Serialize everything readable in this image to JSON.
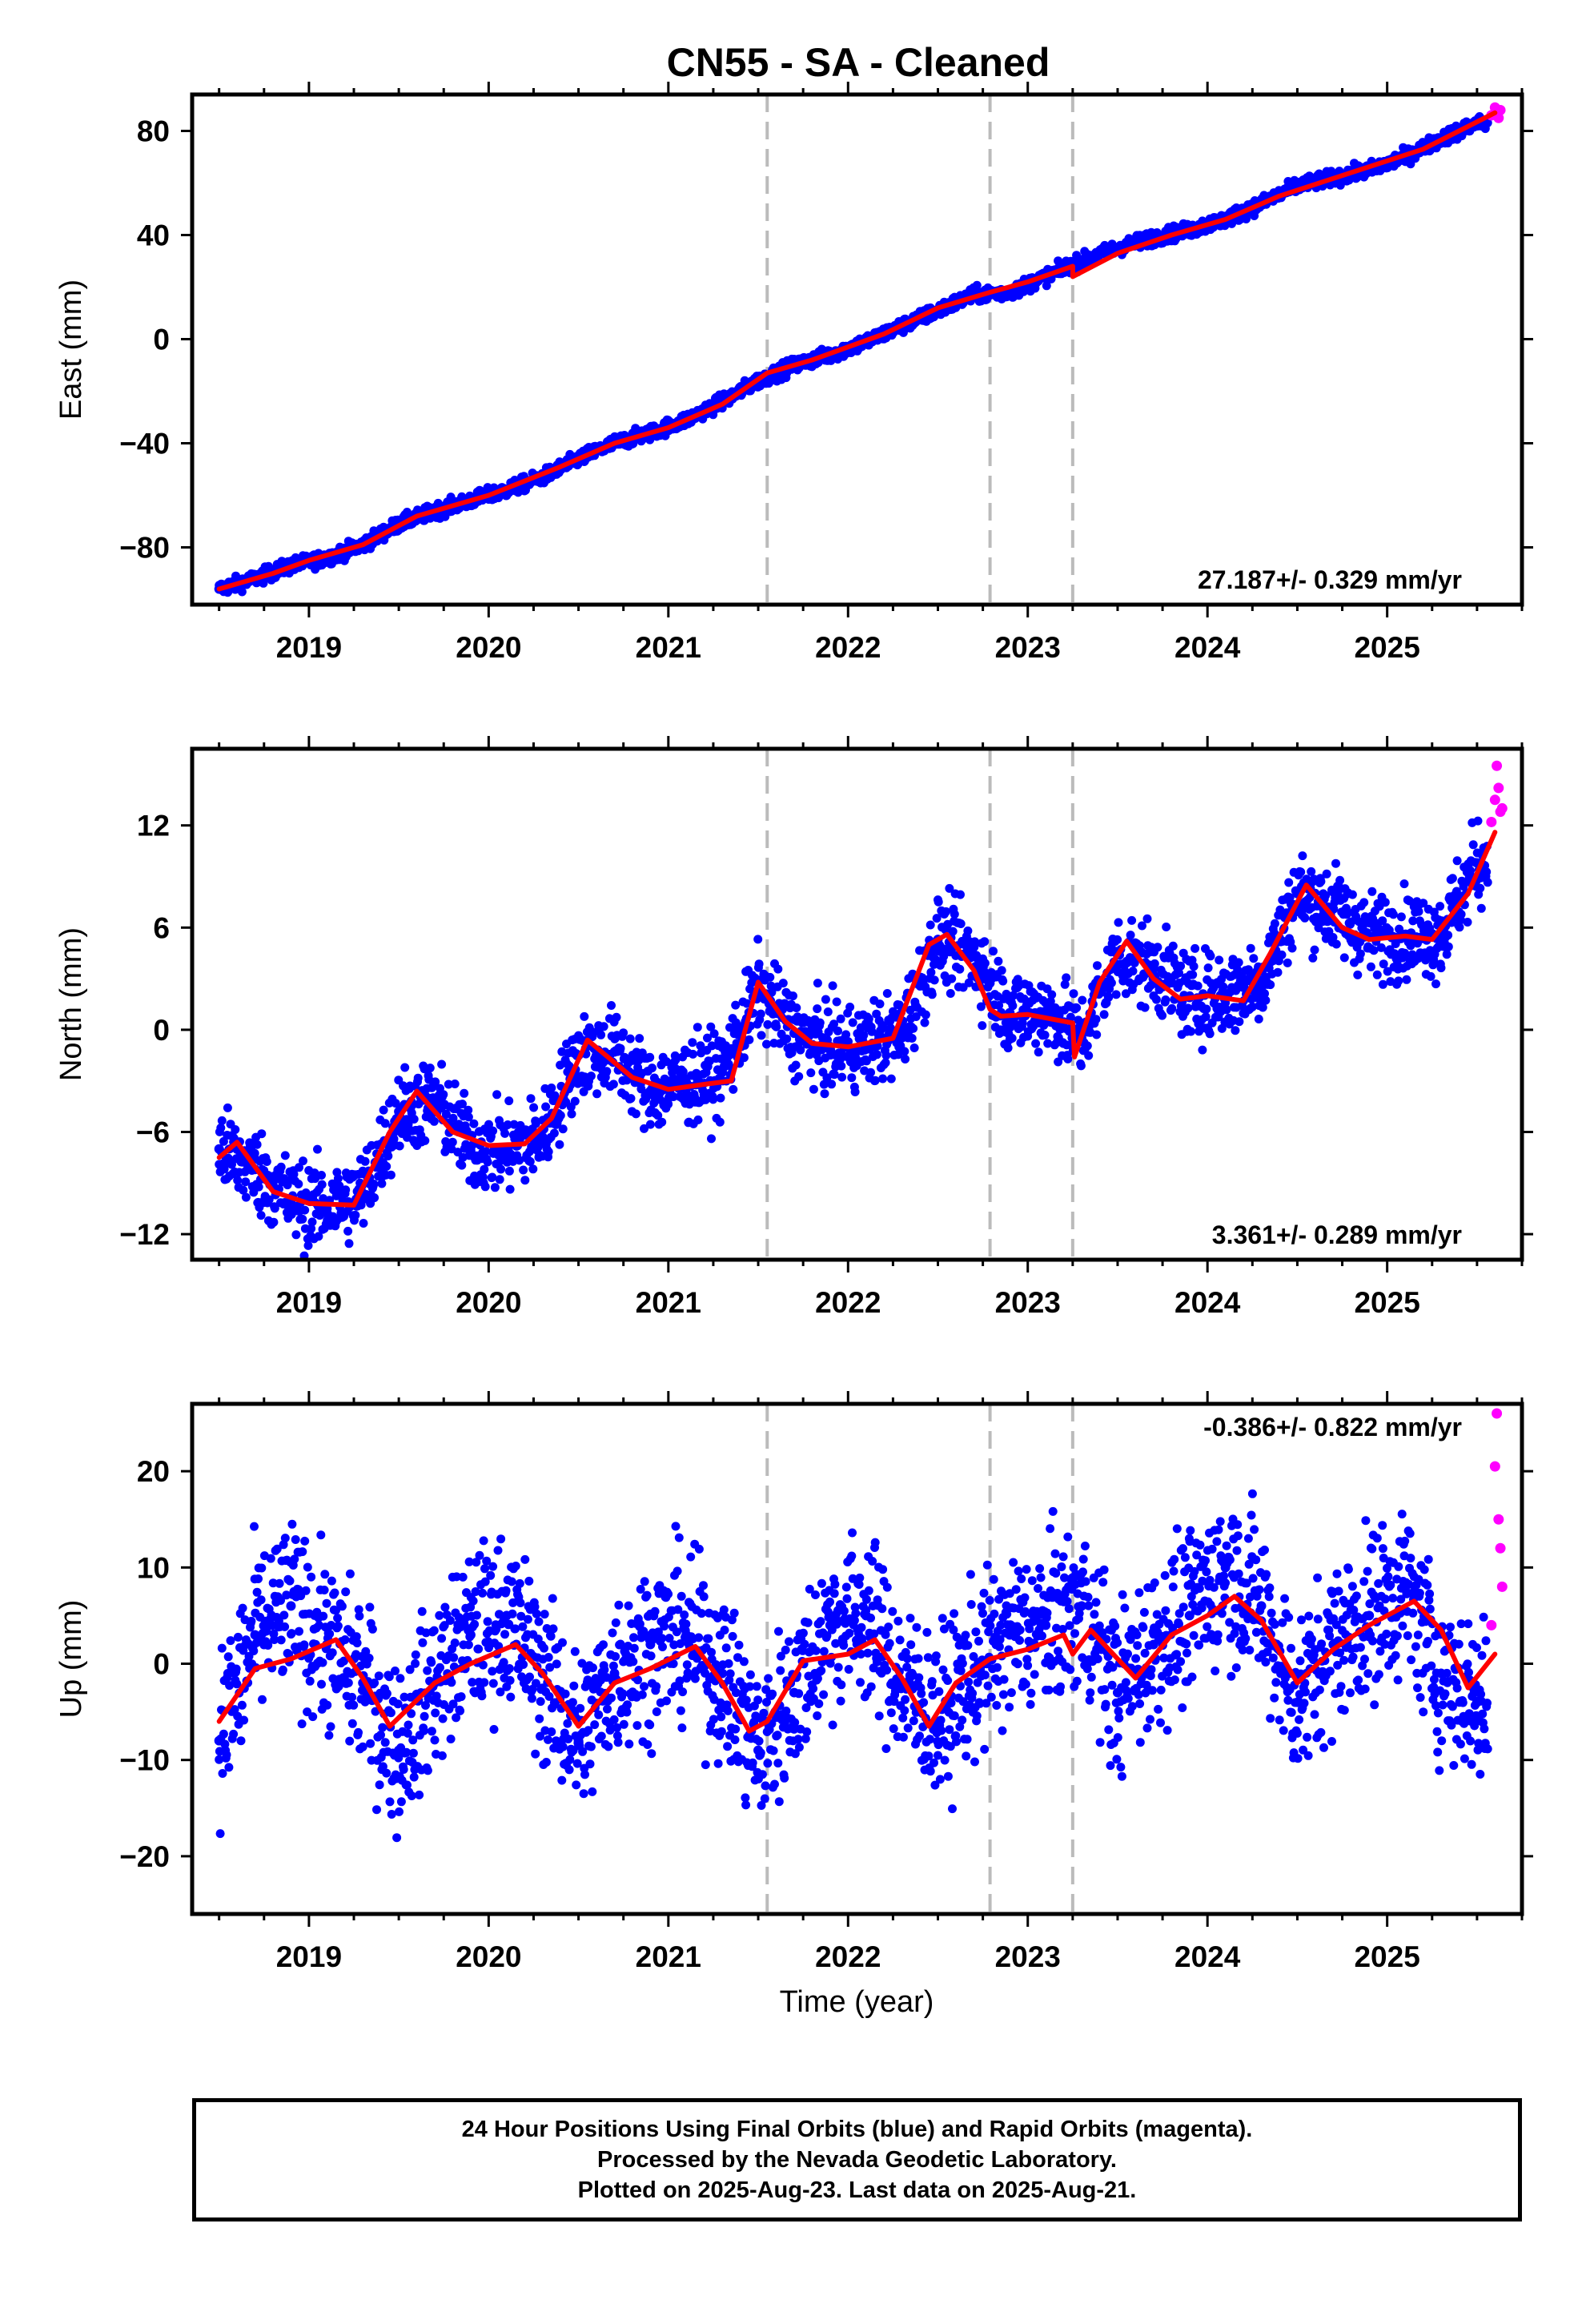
{
  "title": "CN55  - SA - Cleaned",
  "xlabel": "Time (year)",
  "footer": {
    "line1": "24 Hour Positions Using Final Orbits (blue) and Rapid Orbits (magenta).",
    "line2": "Processed by the Nevada Geodetic Laboratory.",
    "line3": "Plotted on 2025-Aug-23. Last data on 2025-Aug-21."
  },
  "colors": {
    "final_orbits": "#0000ff",
    "rapid_orbits": "#ff00ff",
    "model_fit": "#ff0000",
    "event_lines": "#bbbbbb"
  },
  "chart_data": [
    {
      "type": "scatter",
      "ylabel": "East (mm)",
      "rate_label": "27.187+/- 0.329 mm/yr",
      "xlim": [
        2018.35,
        2025.75
      ],
      "ylim": [
        -102,
        94
      ],
      "yticks": [
        -80,
        -40,
        0,
        40,
        80
      ],
      "xticks": [
        2019,
        2020,
        2021,
        2022,
        2023,
        2024,
        2025
      ],
      "event_lines_x": [
        2021.55,
        2022.79,
        2023.25
      ],
      "fit": {
        "x": [
          2018.5,
          2018.8,
          2019.0,
          2019.3,
          2019.6,
          2020.0,
          2020.4,
          2020.7,
          2021.0,
          2021.3,
          2021.55,
          2021.8,
          2022.2,
          2022.5,
          2022.79,
          2023.0,
          2023.25,
          2023.25,
          2023.5,
          2023.8,
          2024.1,
          2024.4,
          2024.8,
          2025.2,
          2025.6
        ],
        "y": [
          -96,
          -90,
          -85,
          -79,
          -68,
          -60,
          -49,
          -40,
          -34,
          -25,
          -13,
          -8,
          2,
          12,
          18,
          22,
          28,
          24,
          33,
          40,
          46,
          55,
          64,
          73,
          87
        ]
      },
      "final": {
        "x": [
          2018.5,
          2018.7,
          2018.9,
          2019.1,
          2019.3,
          2019.5,
          2019.7,
          2019.9,
          2020.1,
          2020.3,
          2020.5,
          2020.7,
          2020.9,
          2021.1,
          2021.3,
          2021.5,
          2021.7,
          2021.9,
          2022.1,
          2022.3,
          2022.5,
          2022.7,
          2022.9,
          2023.1,
          2023.3,
          2023.5,
          2023.7,
          2023.9,
          2024.1,
          2024.3,
          2024.5,
          2024.7,
          2024.9,
          2025.1,
          2025.3,
          2025.5
        ],
        "y": [
          -96,
          -92,
          -87,
          -84,
          -79,
          -71,
          -66,
          -62,
          -58,
          -53,
          -46,
          -40,
          -36,
          -31,
          -24,
          -16,
          -10,
          -6,
          -1,
          5,
          11,
          17,
          18,
          24,
          30,
          35,
          39,
          42,
          46,
          52,
          59,
          62,
          65,
          70,
          77,
          83
        ]
      },
      "rapid": {
        "x": [
          2025.58,
          2025.6,
          2025.62,
          2025.63
        ],
        "y": [
          86,
          89,
          85,
          88
        ]
      }
    },
    {
      "type": "scatter",
      "ylabel": "North (mm)",
      "rate_label": "3.361+/- 0.289 mm/yr",
      "xlim": [
        2018.35,
        2025.75
      ],
      "ylim": [
        -13.5,
        16.5
      ],
      "yticks": [
        -12,
        -6,
        0,
        6,
        12
      ],
      "xticks": [
        2019,
        2020,
        2021,
        2022,
        2023,
        2024,
        2025
      ],
      "event_lines_x": [
        2021.55,
        2022.79,
        2023.25
      ],
      "fit": {
        "x": [
          2018.5,
          2018.6,
          2018.8,
          2019.0,
          2019.25,
          2019.45,
          2019.6,
          2019.8,
          2020.0,
          2020.2,
          2020.35,
          2020.55,
          2020.8,
          2021.0,
          2021.2,
          2021.35,
          2021.5,
          2021.65,
          2021.8,
          2022.0,
          2022.25,
          2022.45,
          2022.55,
          2022.7,
          2022.79,
          2022.85,
          2023.0,
          2023.25,
          2023.26,
          2023.4,
          2023.55,
          2023.7,
          2023.85,
          2024.0,
          2024.2,
          2024.35,
          2024.55,
          2024.75,
          2024.9,
          2025.1,
          2025.25,
          2025.45,
          2025.6
        ],
        "y": [
          -7.5,
          -6.6,
          -9.5,
          -10.2,
          -10.3,
          -6.0,
          -3.6,
          -6.0,
          -6.8,
          -6.7,
          -5.2,
          -0.6,
          -2.8,
          -3.5,
          -3.2,
          -3.0,
          2.8,
          0.5,
          -0.8,
          -1.0,
          -0.5,
          5.0,
          5.6,
          3.5,
          1.2,
          0.8,
          0.9,
          0.4,
          -1.6,
          2.8,
          5.2,
          3.0,
          1.8,
          2.0,
          1.7,
          4.5,
          8.5,
          6.0,
          5.3,
          5.5,
          5.3,
          8.0,
          11.6
        ]
      },
      "final": {
        "x": [
          2018.5,
          2018.7,
          2018.9,
          2019.1,
          2019.3,
          2019.5,
          2019.7,
          2019.9,
          2020.1,
          2020.3,
          2020.5,
          2020.7,
          2020.9,
          2021.1,
          2021.3,
          2021.5,
          2021.7,
          2021.9,
          2022.1,
          2022.3,
          2022.5,
          2022.7,
          2022.9,
          2023.1,
          2023.3,
          2023.5,
          2023.7,
          2023.9,
          2024.1,
          2024.3,
          2024.5,
          2024.7,
          2024.9,
          2025.1,
          2025.3,
          2025.5
        ],
        "y": [
          -7.0,
          -8.2,
          -10.0,
          -10.5,
          -9.6,
          -4.8,
          -4.2,
          -6.9,
          -7.1,
          -6.3,
          -1.5,
          -1.3,
          -3.6,
          -3.1,
          -2.5,
          2.3,
          -0.2,
          -1.1,
          -0.9,
          -0.2,
          5.3,
          4.3,
          1.0,
          1.1,
          -0.5,
          4.4,
          3.6,
          1.9,
          2.1,
          2.9,
          8.0,
          7.1,
          5.5,
          5.6,
          5.6,
          9.8
        ]
      },
      "rapid": {
        "x": [
          2025.58,
          2025.6,
          2025.61,
          2025.62,
          2025.63,
          2025.64
        ],
        "y": [
          12.2,
          13.5,
          15.5,
          14.2,
          12.8,
          13.0
        ]
      }
    },
    {
      "type": "scatter",
      "ylabel": "Up (mm)",
      "rate_label": "-0.386+/- 0.822 mm/yr",
      "xlim": [
        2018.35,
        2025.75
      ],
      "ylim": [
        -26,
        27
      ],
      "yticks": [
        -20,
        -10,
        0,
        10,
        20
      ],
      "xticks": [
        2019,
        2020,
        2021,
        2022,
        2023,
        2024,
        2025
      ],
      "event_lines_x": [
        2021.55,
        2022.79,
        2023.25
      ],
      "fit": {
        "x": [
          2018.5,
          2018.7,
          2018.9,
          2019.15,
          2019.3,
          2019.45,
          2019.7,
          2019.9,
          2020.15,
          2020.3,
          2020.5,
          2020.7,
          2020.9,
          2021.15,
          2021.3,
          2021.45,
          2021.55,
          2021.75,
          2022.0,
          2022.15,
          2022.3,
          2022.45,
          2022.6,
          2022.79,
          2023.0,
          2023.2,
          2023.25,
          2023.35,
          2023.6,
          2023.8,
          2024.0,
          2024.15,
          2024.3,
          2024.5,
          2024.7,
          2024.9,
          2025.15,
          2025.3,
          2025.45,
          2025.6
        ],
        "y": [
          -6.0,
          -0.5,
          0.5,
          2.5,
          -1.5,
          -6.5,
          -2.0,
          0.0,
          2.0,
          -1.0,
          -6.5,
          -2.0,
          -0.5,
          1.8,
          -2.0,
          -7.0,
          -6.0,
          0.3,
          1.0,
          2.5,
          -1.5,
          -6.5,
          -2.0,
          0.5,
          1.5,
          3.0,
          1.0,
          3.5,
          -1.5,
          3.0,
          5.0,
          7.0,
          4.5,
          -2.0,
          1.5,
          4.0,
          6.5,
          3.5,
          -2.5,
          1.0
        ]
      },
      "final": {
        "x": [
          2018.5,
          2018.7,
          2018.9,
          2019.1,
          2019.3,
          2019.5,
          2019.7,
          2019.9,
          2020.1,
          2020.3,
          2020.5,
          2020.7,
          2020.9,
          2021.1,
          2021.3,
          2021.5,
          2021.7,
          2021.9,
          2022.1,
          2022.3,
          2022.5,
          2022.7,
          2022.9,
          2023.1,
          2023.3,
          2023.5,
          2023.7,
          2023.9,
          2024.1,
          2024.3,
          2024.5,
          2024.7,
          2024.9,
          2025.1,
          2025.3,
          2025.5
        ],
        "y": [
          -8.0,
          3.0,
          6.0,
          2.0,
          -2.0,
          -9.0,
          -2.0,
          3.0,
          5.0,
          -1.0,
          -8.0,
          -1.0,
          2.0,
          3.0,
          -1.0,
          -9.0,
          -3.0,
          4.0,
          5.0,
          -2.0,
          -6.0,
          -1.0,
          3.0,
          4.0,
          6.0,
          -3.0,
          2.0,
          5.0,
          10.0,
          6.0,
          -4.0,
          2.0,
          5.0,
          8.0,
          -1.0,
          -4.0
        ]
      },
      "rapid": {
        "x": [
          2025.58,
          2025.6,
          2025.61,
          2025.62,
          2025.63,
          2025.64
        ],
        "y": [
          4.0,
          20.5,
          26.0,
          15.0,
          12.0,
          8.0
        ]
      }
    }
  ]
}
